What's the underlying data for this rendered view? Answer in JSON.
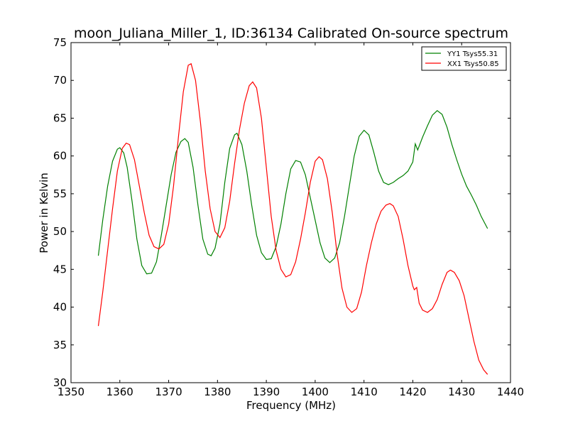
{
  "chart_data": {
    "type": "line",
    "title": "moon_Juliana_Miller_1, ID:36134 Calibrated On-source spectrum",
    "xlabel": "Frequency (MHz)",
    "ylabel": "Power in Kelvin",
    "xlim": [
      1350,
      1440
    ],
    "ylim": [
      30,
      75
    ],
    "xticks": [
      "1350",
      "1360",
      "1370",
      "1380",
      "1390",
      "1400",
      "1410",
      "1420",
      "1430",
      "1440"
    ],
    "yticks": [
      "30",
      "35",
      "40",
      "45",
      "50",
      "55",
      "60",
      "65",
      "70",
      "75"
    ],
    "grid": false,
    "legend_position": "top-right",
    "series": [
      {
        "name": "YY1 Tsys55.31",
        "color": "#008000",
        "points": [
          [
            1355.6,
            46.8
          ],
          [
            1356.5,
            51.5
          ],
          [
            1357.5,
            56.0
          ],
          [
            1358.5,
            59.3
          ],
          [
            1359.5,
            60.9
          ],
          [
            1360.0,
            61.1
          ],
          [
            1360.8,
            60.4
          ],
          [
            1361.5,
            58.5
          ],
          [
            1362.5,
            54.0
          ],
          [
            1363.5,
            49.0
          ],
          [
            1364.5,
            45.5
          ],
          [
            1365.5,
            44.4
          ],
          [
            1366.5,
            44.5
          ],
          [
            1367.5,
            46.0
          ],
          [
            1368.5,
            49.5
          ],
          [
            1369.5,
            53.5
          ],
          [
            1370.5,
            57.5
          ],
          [
            1371.5,
            60.5
          ],
          [
            1372.5,
            61.9
          ],
          [
            1373.3,
            62.3
          ],
          [
            1374.0,
            61.8
          ],
          [
            1375.0,
            58.5
          ],
          [
            1376.0,
            53.5
          ],
          [
            1377.0,
            49.0
          ],
          [
            1378.0,
            47.0
          ],
          [
            1378.7,
            46.8
          ],
          [
            1379.5,
            47.8
          ],
          [
            1380.5,
            51.0
          ],
          [
            1381.5,
            56.5
          ],
          [
            1382.5,
            61.0
          ],
          [
            1383.5,
            62.8
          ],
          [
            1384.0,
            63.0
          ],
          [
            1385.0,
            61.5
          ],
          [
            1386.0,
            58.0
          ],
          [
            1387.0,
            53.5
          ],
          [
            1388.0,
            49.5
          ],
          [
            1389.0,
            47.2
          ],
          [
            1390.0,
            46.3
          ],
          [
            1391.0,
            46.4
          ],
          [
            1392.0,
            48.0
          ],
          [
            1393.0,
            51.0
          ],
          [
            1394.0,
            55.0
          ],
          [
            1395.0,
            58.3
          ],
          [
            1396.0,
            59.4
          ],
          [
            1397.0,
            59.2
          ],
          [
            1398.0,
            57.5
          ],
          [
            1399.0,
            54.5
          ],
          [
            1400.0,
            51.5
          ],
          [
            1401.0,
            48.5
          ],
          [
            1402.0,
            46.5
          ],
          [
            1403.0,
            45.9
          ],
          [
            1404.0,
            46.5
          ],
          [
            1405.0,
            48.5
          ],
          [
            1406.0,
            52.0
          ],
          [
            1407.0,
            56.0
          ],
          [
            1408.0,
            60.0
          ],
          [
            1409.0,
            62.6
          ],
          [
            1410.0,
            63.4
          ],
          [
            1411.0,
            62.8
          ],
          [
            1412.0,
            60.5
          ],
          [
            1413.0,
            58.0
          ],
          [
            1414.0,
            56.5
          ],
          [
            1415.0,
            56.2
          ],
          [
            1416.0,
            56.5
          ],
          [
            1417.0,
            57.0
          ],
          [
            1418.0,
            57.4
          ],
          [
            1419.0,
            58.0
          ],
          [
            1420.0,
            59.2
          ],
          [
            1420.5,
            61.6
          ],
          [
            1421.0,
            60.8
          ],
          [
            1422.0,
            62.5
          ],
          [
            1423.0,
            64.0
          ],
          [
            1424.0,
            65.4
          ],
          [
            1425.0,
            66.0
          ],
          [
            1426.0,
            65.5
          ],
          [
            1427.0,
            63.8
          ],
          [
            1428.0,
            61.5
          ],
          [
            1429.0,
            59.5
          ],
          [
            1430.0,
            57.6
          ],
          [
            1431.0,
            56.0
          ],
          [
            1432.0,
            54.8
          ],
          [
            1433.0,
            53.5
          ],
          [
            1434.0,
            52.0
          ],
          [
            1435.3,
            50.4
          ]
        ]
      },
      {
        "name": "XX1 Tsys50.85",
        "color": "#ff0000",
        "points": [
          [
            1355.6,
            37.5
          ],
          [
            1356.5,
            42.0
          ],
          [
            1357.5,
            47.5
          ],
          [
            1358.5,
            53.0
          ],
          [
            1359.5,
            58.0
          ],
          [
            1360.5,
            61.0
          ],
          [
            1361.3,
            61.7
          ],
          [
            1362.0,
            61.5
          ],
          [
            1363.0,
            59.5
          ],
          [
            1364.0,
            56.0
          ],
          [
            1365.0,
            52.5
          ],
          [
            1366.0,
            49.5
          ],
          [
            1367.0,
            48.0
          ],
          [
            1368.0,
            47.7
          ],
          [
            1369.0,
            48.3
          ],
          [
            1370.0,
            51.0
          ],
          [
            1371.0,
            56.0
          ],
          [
            1372.0,
            62.5
          ],
          [
            1373.0,
            68.5
          ],
          [
            1374.0,
            72.0
          ],
          [
            1374.6,
            72.2
          ],
          [
            1375.5,
            70.0
          ],
          [
            1376.5,
            64.5
          ],
          [
            1377.5,
            58.0
          ],
          [
            1378.5,
            53.0
          ],
          [
            1379.5,
            50.0
          ],
          [
            1380.5,
            49.2
          ],
          [
            1381.5,
            50.5
          ],
          [
            1382.5,
            54.0
          ],
          [
            1383.5,
            59.0
          ],
          [
            1384.5,
            63.5
          ],
          [
            1385.5,
            67.0
          ],
          [
            1386.5,
            69.3
          ],
          [
            1387.2,
            69.8
          ],
          [
            1388.0,
            69.0
          ],
          [
            1389.0,
            65.0
          ],
          [
            1390.0,
            58.5
          ],
          [
            1391.0,
            52.0
          ],
          [
            1392.0,
            47.5
          ],
          [
            1393.0,
            45.0
          ],
          [
            1394.0,
            44.0
          ],
          [
            1395.0,
            44.3
          ],
          [
            1396.0,
            46.0
          ],
          [
            1397.0,
            49.0
          ],
          [
            1398.0,
            52.5
          ],
          [
            1399.0,
            56.5
          ],
          [
            1400.0,
            59.3
          ],
          [
            1400.8,
            59.9
          ],
          [
            1401.5,
            59.5
          ],
          [
            1402.5,
            57.0
          ],
          [
            1403.5,
            52.5
          ],
          [
            1404.5,
            47.0
          ],
          [
            1405.5,
            42.5
          ],
          [
            1406.5,
            40.0
          ],
          [
            1407.5,
            39.3
          ],
          [
            1408.5,
            39.8
          ],
          [
            1409.5,
            42.0
          ],
          [
            1410.5,
            45.5
          ],
          [
            1411.5,
            48.5
          ],
          [
            1412.5,
            51.0
          ],
          [
            1413.5,
            52.7
          ],
          [
            1414.5,
            53.5
          ],
          [
            1415.3,
            53.7
          ],
          [
            1416.0,
            53.4
          ],
          [
            1417.0,
            52.0
          ],
          [
            1418.0,
            49.0
          ],
          [
            1419.0,
            45.5
          ],
          [
            1420.0,
            42.8
          ],
          [
            1420.3,
            42.3
          ],
          [
            1420.8,
            42.6
          ],
          [
            1421.3,
            40.5
          ],
          [
            1422.0,
            39.6
          ],
          [
            1423.0,
            39.3
          ],
          [
            1424.0,
            39.8
          ],
          [
            1425.0,
            41.0
          ],
          [
            1426.0,
            43.0
          ],
          [
            1427.0,
            44.6
          ],
          [
            1427.7,
            44.9
          ],
          [
            1428.5,
            44.6
          ],
          [
            1429.5,
            43.5
          ],
          [
            1430.5,
            41.5
          ],
          [
            1431.5,
            38.5
          ],
          [
            1432.5,
            35.5
          ],
          [
            1433.5,
            33.0
          ],
          [
            1434.5,
            31.7
          ],
          [
            1435.3,
            31.1
          ]
        ]
      }
    ]
  }
}
